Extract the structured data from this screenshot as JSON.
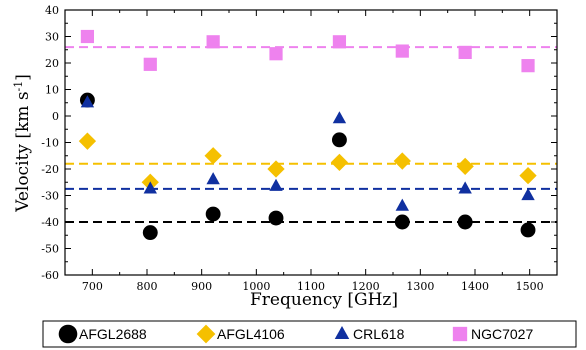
{
  "chart_data": {
    "type": "scatter",
    "xlabel": "Frequency [GHz]",
    "ylabel": {
      "main": "Velocity [km s",
      "sup": "-1",
      "close": "]"
    },
    "xlim": [
      650,
      1550
    ],
    "ylim": [
      -60,
      40
    ],
    "x_ticks": [
      700,
      800,
      900,
      1000,
      1100,
      1200,
      1300,
      1400,
      1500
    ],
    "y_ticks": [
      -60,
      -50,
      -40,
      -30,
      -20,
      -10,
      0,
      10,
      20,
      30,
      40
    ],
    "series": [
      {
        "name": "AFGL2688",
        "marker": "circle",
        "color": "#000000",
        "points": [
          [
            691,
            6
          ],
          [
            806,
            -44
          ],
          [
            921,
            -37
          ],
          [
            1036,
            -38.5
          ],
          [
            1152,
            -9
          ],
          [
            1267,
            -40
          ],
          [
            1382,
            -40
          ],
          [
            1497,
            -43
          ]
        ],
        "mean_line": -40
      },
      {
        "name": "AFGL4106",
        "marker": "diamond",
        "color": "#f5c000",
        "points": [
          [
            691,
            -9.5
          ],
          [
            806,
            -25
          ],
          [
            921,
            -15
          ],
          [
            1036,
            -20
          ],
          [
            1152,
            -17.5
          ],
          [
            1267,
            -17
          ],
          [
            1382,
            -19
          ],
          [
            1497,
            -22.5
          ]
        ],
        "mean_line": -18
      },
      {
        "name": "CRL618",
        "marker": "triangle",
        "color": "#1030a0",
        "points": [
          [
            691,
            5
          ],
          [
            806,
            -27.5
          ],
          [
            921,
            -24
          ],
          [
            1036,
            -26.5
          ],
          [
            1152,
            -1
          ],
          [
            1267,
            -34
          ],
          [
            1382,
            -27.5
          ],
          [
            1497,
            -30
          ]
        ],
        "mean_line": -27.5
      },
      {
        "name": "NGC7027",
        "marker": "square",
        "color": "#ee82ee",
        "points": [
          [
            691,
            30
          ],
          [
            806,
            19.5
          ],
          [
            921,
            28
          ],
          [
            1036,
            23.5
          ],
          [
            1152,
            28
          ],
          [
            1267,
            24.5
          ],
          [
            1382,
            24
          ],
          [
            1497,
            19
          ]
        ],
        "mean_line": 26
      }
    ],
    "grid": false,
    "legend_position": "bottom"
  }
}
